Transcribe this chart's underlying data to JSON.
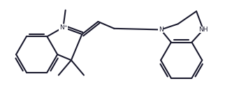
{
  "bg_color": "#ffffff",
  "line_color": "#1a1a2e",
  "line_width": 1.5,
  "figsize": [
    3.32,
    1.46
  ],
  "dpi": 100,
  "xlim": [
    0,
    10
  ],
  "ylim": [
    0,
    4.4
  ]
}
